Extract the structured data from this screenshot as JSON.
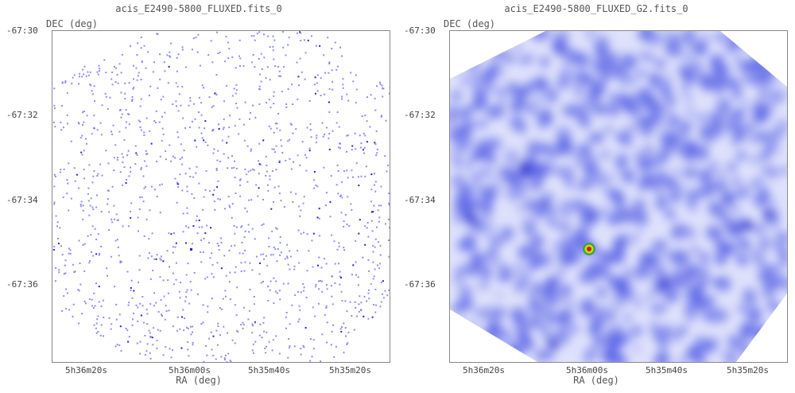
{
  "panels": [
    {
      "title": "acis_E2490-5800_FLUXED.fits_0",
      "render": "sparse"
    },
    {
      "title": "acis_E2490-5800_FLUXED_G2.fits_0",
      "render": "smoothed"
    }
  ],
  "axes": {
    "xlabel": "RA (deg)",
    "ylabel": "DEC (deg)",
    "yticks": [
      "-67:30",
      "-67:32",
      "-67:34",
      "-67:36"
    ],
    "xticks": [
      "5h36m20s",
      "5h36m00s",
      "5h35m40s",
      "5h35m20s"
    ]
  },
  "colors": {
    "count": "#6f6ff0",
    "bright": "#2424c8",
    "smooth": "#5a64e6",
    "source_core": "#cc2200",
    "source_ring": "#d8d400",
    "source_halo": "#22aa44"
  }
}
